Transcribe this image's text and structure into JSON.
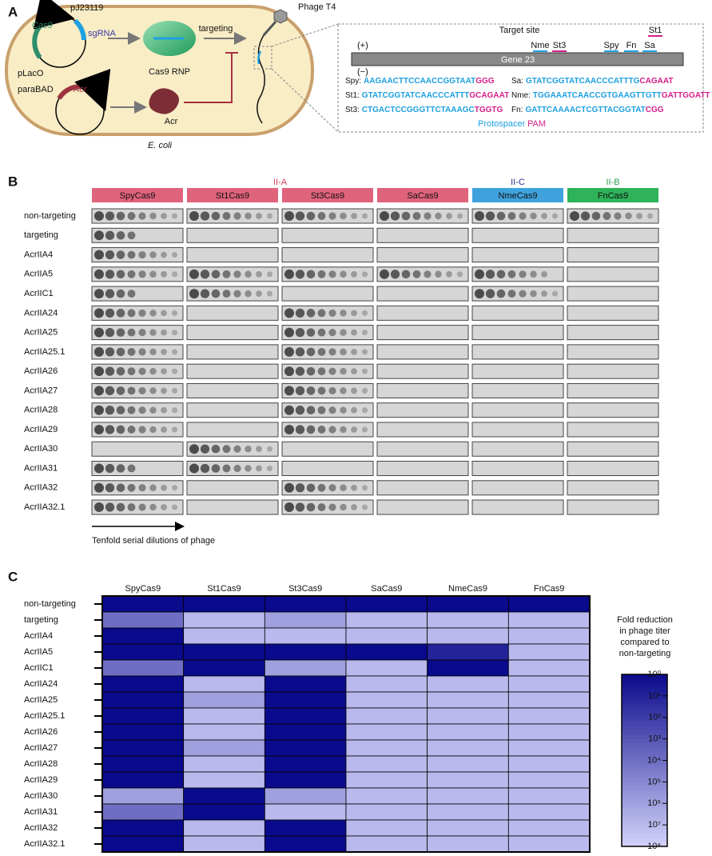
{
  "panel_a": {
    "label": "A",
    "cas9_gene": "Cas9",
    "promoter_1": "pJ23119",
    "sgrna": "sgRNA",
    "promoter_2": "pLacO",
    "promoter_3": "paraBAD",
    "acr_gene": "Acr",
    "cas9_rnp": "Cas9 RNP",
    "acr_protein": "Acr",
    "targeting": "targeting",
    "organism": "E. coli",
    "phage": "Phage T4",
    "target_site": "Target site",
    "plus_strand": "(+)",
    "minus_strand": "(−)",
    "gene": "Gene 23",
    "site_labels": [
      "Nme",
      "St3",
      "Spy",
      "Fn",
      "Sa",
      "St1"
    ],
    "sequences": [
      {
        "name": "Spy:",
        "protospacer": "AAGAACTTCCAACCGGTAAT",
        "pam": "GGG"
      },
      {
        "name": "St1:",
        "protospacer": "GTATCGGTATCAACCCATTT",
        "pam": "GCAGAAT"
      },
      {
        "name": "St3:",
        "protospacer": "CTGACTCCGGGTTCTAAAGC",
        "pam": "TGGTG"
      },
      {
        "name": "Sa:",
        "protospacer": "GTATCGGTATCAACCCATTTG",
        "pam": "CAGAAT"
      },
      {
        "name": "Nme:",
        "protospacer": "TGGAAATCAACCGTGAAGTTGTT",
        "pam": "GATTGGATT"
      },
      {
        "name": "Fn:",
        "protospacer": "GATTCAAAACTCGTTACGGTAT",
        "pam": "CGG"
      }
    ],
    "legend": {
      "protospacer": "Protospacer",
      "pam": "PAM"
    }
  },
  "panel_b": {
    "label": "B",
    "groups": [
      {
        "name": "II-A",
        "color": "#d0405c",
        "header_color": "#e0637c",
        "columns": [
          "SpyCas9",
          "St1Cas9",
          "St3Cas9",
          "SaCas9"
        ]
      },
      {
        "name": "II-C",
        "color": "#303090",
        "header_color": "#3fa2dc",
        "columns": [
          "NmeCas9"
        ]
      },
      {
        "name": "II-B",
        "color": "#2ea04c",
        "header_color": "#2fb35a",
        "columns": [
          "FnCas9"
        ]
      }
    ],
    "rows": [
      "non-targeting",
      "targeting",
      "AcrIIA4",
      "AcrIIA5",
      "AcrIIC1",
      "AcrIIA24",
      "AcrIIA25",
      "AcrIIA25.1",
      "AcrIIA26",
      "AcrIIA27",
      "AcrIIA28",
      "AcrIIA29",
      "AcrIIA30",
      "AcrIIA31",
      "AcrIIA32",
      "AcrIIA32.1"
    ],
    "arrow_label": "Tenfold serial dilutions of phage"
  },
  "panel_c": {
    "label": "C",
    "columns": [
      "SpyCas9",
      "St1Cas9",
      "St3Cas9",
      "SaCas9",
      "NmeCas9",
      "FnCas9"
    ],
    "rows": [
      "non-targeting",
      "targeting",
      "AcrIIA4",
      "AcrIIA5",
      "AcrIIC1",
      "AcrIIA24",
      "AcrIIA25",
      "AcrIIA25.1",
      "AcrIIA26",
      "AcrIIA27",
      "AcrIIA28",
      "AcrIIA29",
      "AcrIIA30",
      "AcrIIA31",
      "AcrIIA32",
      "AcrIIA32.1"
    ],
    "values": [
      [
        0,
        0,
        0,
        0,
        0,
        0
      ],
      [
        4,
        7,
        6,
        7,
        7,
        7
      ],
      [
        0,
        7,
        7,
        7,
        7,
        7
      ],
      [
        0,
        0,
        0,
        0,
        1,
        7
      ],
      [
        4,
        0,
        6,
        7,
        0,
        7
      ],
      [
        0,
        7,
        0,
        7,
        7,
        7
      ],
      [
        0,
        6,
        0,
        7,
        7,
        7
      ],
      [
        0,
        7,
        0,
        7,
        7,
        7
      ],
      [
        0,
        7,
        0,
        7,
        7,
        7
      ],
      [
        0,
        6,
        0,
        7,
        7,
        7
      ],
      [
        0,
        7,
        0,
        7,
        7,
        7
      ],
      [
        0,
        7,
        0,
        7,
        7,
        7
      ],
      [
        6,
        0,
        6,
        7,
        7,
        7
      ],
      [
        4,
        0,
        7,
        7,
        7,
        7
      ],
      [
        0,
        7,
        0,
        7,
        7,
        7
      ],
      [
        0,
        7,
        0,
        7,
        7,
        7
      ]
    ],
    "colorbar_title": [
      "Fold reduction",
      "in phage titer",
      "compared to",
      "non-targeting"
    ],
    "clim": [
      0,
      8
    ],
    "colors": [
      "#0a0a8c",
      "#d2d2fb"
    ],
    "cticks": [
      {
        "value": 0,
        "label": "10⁰"
      },
      {
        "value": 1,
        "label": "10¹"
      },
      {
        "value": 2,
        "label": "10²"
      },
      {
        "value": 3,
        "label": "10³"
      },
      {
        "value": 4,
        "label": "10⁴"
      },
      {
        "value": 5,
        "label": "10⁵"
      },
      {
        "value": 6,
        "label": "10⁶"
      },
      {
        "value": 7,
        "label": "10⁷"
      },
      {
        "value": 8,
        "label": "10⁸"
      }
    ]
  }
}
